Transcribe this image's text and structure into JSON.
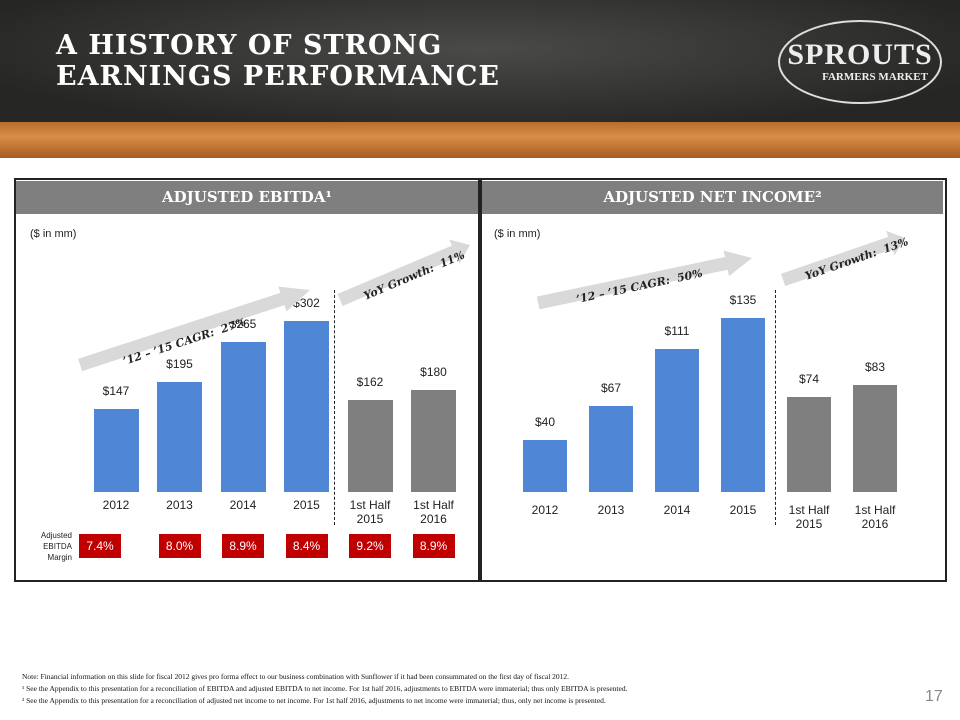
{
  "slide": {
    "title": "A HISTORY OF STRONG EARNINGS PERFORMANCE",
    "logo": {
      "name": "SPROUTS",
      "tagline": "FARMERS MARKET"
    },
    "notes": [
      "Note:  Financial information on this slide for fiscal 2012 gives pro forma effect to our business combination with Sunflower if it had been consummated on the first day of fiscal 2012.",
      "¹ See the Appendix to this presentation for a reconciliation of EBITDA and adjusted EBITDA to net income. For 1st half 2016, adjustments to EBITDA were immaterial; thus only EBITDA is presented.",
      "² See the Appendix to this presentation for a reconciliation of adjusted net income to net income. For 1st half 2016, adjustments to net income were immaterial; thus, only net income is presented."
    ],
    "page_number": "17"
  },
  "chart_data": [
    {
      "type": "bar",
      "title": "ADJUSTED EBITDA¹",
      "subtitle": "($ in mm)",
      "categories": [
        "2012",
        "2013",
        "2014",
        "2015",
        "1st Half 2015",
        "1st Half 2016"
      ],
      "values": [
        147,
        195,
        265,
        302,
        162,
        180
      ],
      "value_labels": [
        "$147",
        "$195",
        "$265",
        "$302",
        "$162",
        "$180"
      ],
      "colors": [
        "#4f86d5",
        "#4f86d5",
        "#4f86d5",
        "#4f86d5",
        "#7f7f7f",
        "#7f7f7f"
      ],
      "annotations": [
        "’12 – ’15 CAGR:  27%",
        "YoY Growth:  11%"
      ],
      "margin_row": {
        "label": "Adjusted EBITDA Margin",
        "values": [
          7.4,
          8.0,
          8.9,
          8.4,
          9.2,
          8.9
        ],
        "value_labels": [
          "7.4%",
          "8.0%",
          "8.9%",
          "8.4%",
          "9.2%",
          "8.9%"
        ],
        "color": "#c00000"
      }
    },
    {
      "type": "bar",
      "title": "ADJUSTED NET INCOME²",
      "subtitle": "($ in mm)",
      "categories": [
        "2012",
        "2013",
        "2014",
        "2015",
        "1st Half 2015",
        "1st Half 2016"
      ],
      "values": [
        40,
        67,
        111,
        135,
        74,
        83
      ],
      "value_labels": [
        "$40",
        "$67",
        "$111",
        "$135",
        "$74",
        "$83"
      ],
      "colors": [
        "#4f86d5",
        "#4f86d5",
        "#4f86d5",
        "#4f86d5",
        "#7f7f7f",
        "#7f7f7f"
      ],
      "annotations": [
        "’12 – ’15 CAGR:  50%",
        "YoY Growth:  13%"
      ]
    }
  ]
}
